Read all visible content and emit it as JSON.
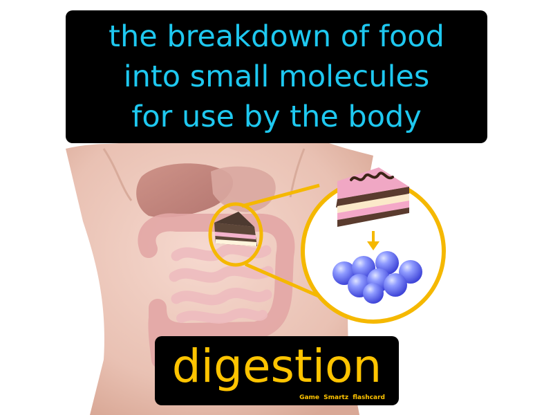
{
  "definition": {
    "lines": [
      "the breakdown of food",
      "into small molecules",
      "for use by the body"
    ]
  },
  "term": "digestion",
  "credit": "Game Smartz flashcard",
  "colors": {
    "definition_text": "#1ec8f0",
    "term_text": "#ffc400",
    "label_background": "#000000",
    "magnifier_ring": "#f5b800",
    "molecule": "#6f7cff"
  },
  "icons": {
    "illustration": "torso-digestive-system",
    "zoom": "magnifier-circle",
    "food": "cake-slice-icon",
    "process": "arrow-down-icon",
    "result": "molecule-cluster-icon"
  }
}
